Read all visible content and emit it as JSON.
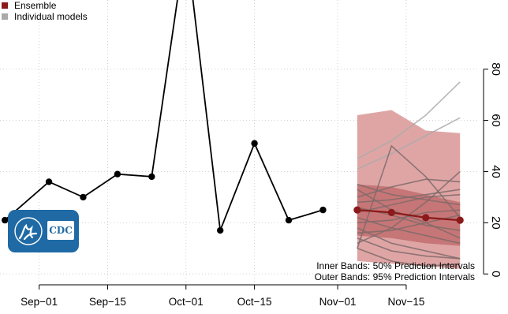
{
  "legend": {
    "items": [
      {
        "label": "Ensemble",
        "color": "#8b1a1a"
      },
      {
        "label": "Individual models",
        "color": "#aaaaaa"
      }
    ]
  },
  "notes": {
    "inner": "Inner Bands: 50% Prediction Intervals",
    "outer": "Outer Bands: 95% Prediction Intervals"
  },
  "logo": {
    "text": "CDC",
    "icon": "hhs-eagle-icon"
  },
  "colors": {
    "observed": "#000000",
    "ensemble": "#8b1a1a",
    "band95": "#dfa5a5",
    "band50": "#c67676",
    "model": "#7f6a6a",
    "model_light": "#aaaaaa",
    "grid": "#d0d0d0"
  },
  "chart_data": {
    "type": "line",
    "xlabel": "",
    "ylabel": "",
    "x_ticks": [
      "Sep−01",
      "Sep−15",
      "Oct−01",
      "Oct−15",
      "Nov−01",
      "Nov−15"
    ],
    "x_tick_dates": [
      "2020-09-01",
      "2020-09-15",
      "2020-10-01",
      "2020-10-15",
      "2020-11-01",
      "2020-11-15"
    ],
    "y_ticks": [
      "0",
      "20",
      "40",
      "60",
      "80"
    ],
    "y_tick_values": [
      0,
      20,
      40,
      60,
      80
    ],
    "xlim": [
      "2020-08-24",
      "2020-11-30"
    ],
    "ylim": [
      -3,
      107
    ],
    "grid": true,
    "legend_position": "top-left",
    "observed": {
      "x": [
        "2020-08-25",
        "2020-09-03",
        "2020-09-10",
        "2020-09-17",
        "2020-09-24",
        "2020-10-01",
        "2020-10-08",
        "2020-10-15",
        "2020-10-22",
        "2020-10-29"
      ],
      "y": [
        21,
        36,
        30,
        39,
        38,
        130,
        17,
        51,
        21,
        25
      ]
    },
    "forecast_x": [
      "2020-11-05",
      "2020-11-12",
      "2020-11-19",
      "2020-11-26"
    ],
    "ensemble": {
      "name": "Ensemble",
      "y": [
        25,
        24,
        22,
        21
      ]
    },
    "band95": {
      "lower": [
        5,
        4,
        3,
        2
      ],
      "upper": [
        62,
        64,
        56,
        55
      ]
    },
    "band50": {
      "lower": [
        15,
        14,
        12,
        11
      ],
      "upper": [
        35,
        34,
        31,
        28
      ]
    },
    "models": [
      {
        "y": [
          45,
          52,
          62,
          75
        ],
        "color": "model_light"
      },
      {
        "y": [
          41,
          47,
          54,
          61
        ],
        "color": "model_light"
      },
      {
        "y": [
          10,
          50,
          38,
          22
        ]
      },
      {
        "y": [
          12,
          18,
          28,
          40
        ]
      },
      {
        "y": [
          30,
          34,
          37,
          36
        ]
      },
      {
        "y": [
          35,
          31,
          29,
          27
        ]
      },
      {
        "y": [
          28,
          29,
          31,
          33
        ]
      },
      {
        "y": [
          33,
          25,
          20,
          14
        ]
      },
      {
        "y": [
          26,
          23,
          19,
          17
        ]
      },
      {
        "y": [
          20,
          21,
          24,
          25
        ]
      },
      {
        "y": [
          22,
          18,
          15,
          12
        ]
      },
      {
        "y": [
          16,
          17,
          20,
          23
        ]
      },
      {
        "y": [
          18,
          12,
          9,
          6
        ]
      },
      {
        "y": [
          10,
          5,
          3,
          4
        ]
      },
      {
        "y": [
          24,
          27,
          30,
          31
        ]
      },
      {
        "y": [
          14,
          9,
          7,
          6
        ]
      }
    ]
  }
}
